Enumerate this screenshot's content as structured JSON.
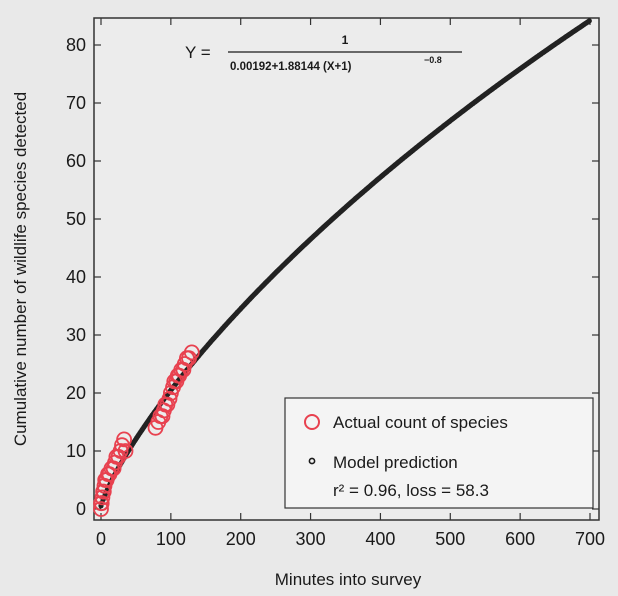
{
  "chart_data": {
    "type": "scatter",
    "xlabel": "Minutes into survey",
    "ylabel": "Cumulative number of wildlife species detected",
    "xlim": [
      0,
      700
    ],
    "ylim": [
      0,
      86
    ],
    "xticks": [
      0,
      100,
      200,
      300,
      400,
      500,
      600,
      700
    ],
    "yticks": [
      0,
      10,
      20,
      30,
      40,
      50,
      60,
      70,
      80
    ],
    "grid": false,
    "legend_position": "bottom-right",
    "equation": {
      "lhs": "Y =",
      "numerator": "1",
      "denominator": "0.00192+1.88144 (X+1)",
      "exponent": "−0.8"
    },
    "fit_stats": "r² = 0.96, loss = 58.3",
    "colors": {
      "actual": "#e8414f",
      "model": "#222222",
      "frame": "#333333"
    },
    "series": [
      {
        "name": "Actual count of species",
        "marker": "open-circle",
        "x": [
          0,
          0,
          1,
          2,
          3,
          4,
          5,
          6,
          8,
          10,
          12,
          15,
          18,
          20,
          22,
          25,
          28,
          30,
          33,
          35,
          78,
          82,
          85,
          88,
          90,
          92,
          95,
          98,
          100,
          103,
          105,
          108,
          110,
          112,
          115,
          118,
          120,
          123,
          126,
          130
        ],
        "y": [
          0,
          1,
          1,
          2,
          3,
          3,
          4,
          5,
          5,
          6,
          6,
          7,
          7,
          8,
          9,
          9,
          10,
          11,
          12,
          10,
          14,
          15,
          16,
          16,
          17,
          18,
          18,
          19,
          20,
          21,
          22,
          22,
          23,
          23,
          24,
          24,
          25,
          26,
          26,
          27
        ]
      },
      {
        "name": "Model prediction",
        "marker": "dot",
        "model": {
          "a": 0.00192,
          "b": 1.88144,
          "c": -0.8
        }
      }
    ]
  }
}
